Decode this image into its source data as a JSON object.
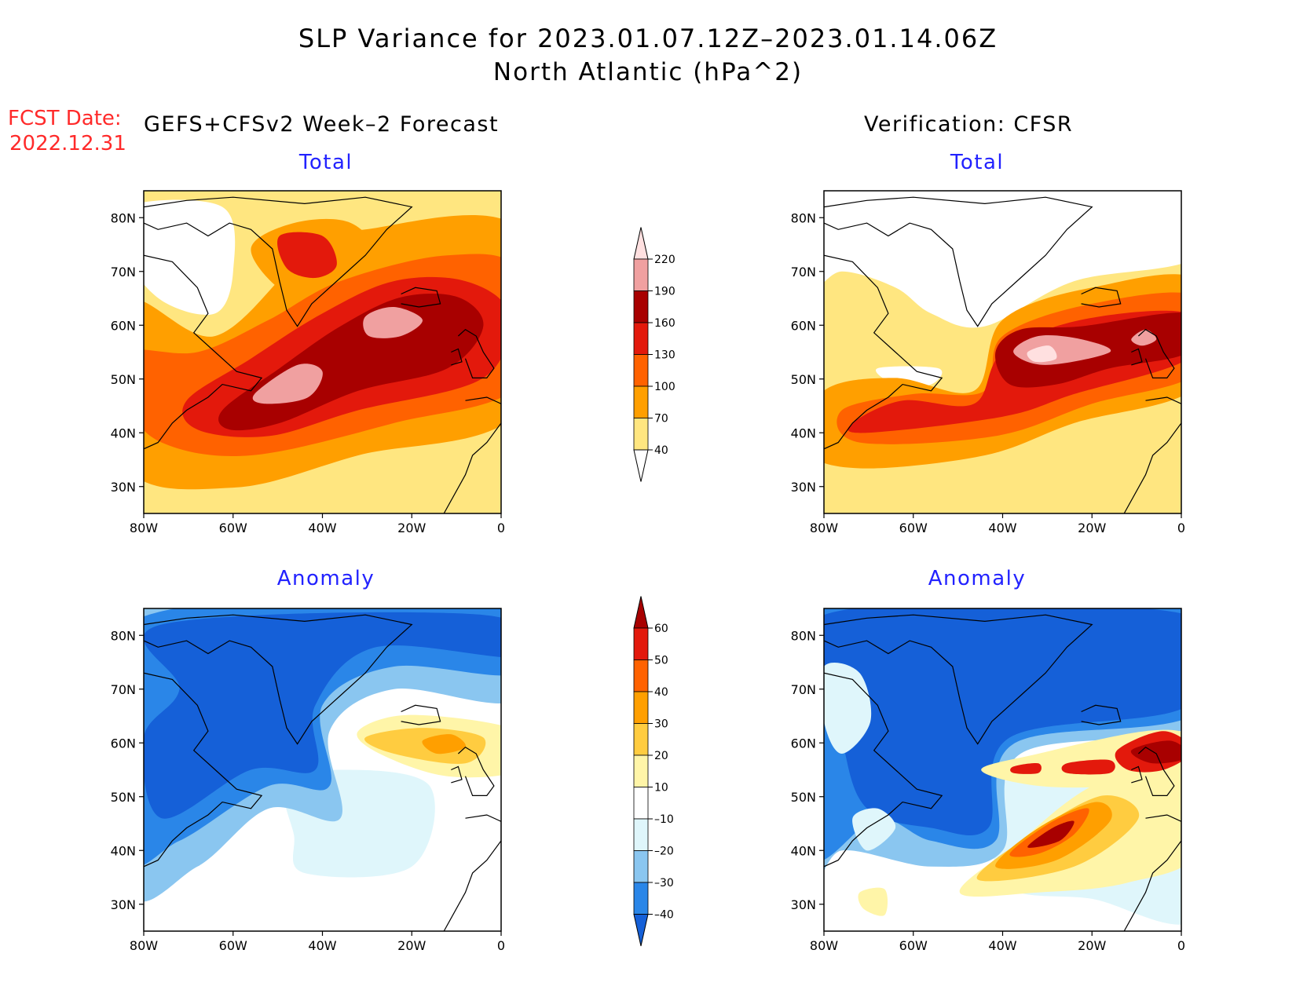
{
  "title_line1": "SLP Variance for 2023.01.07.12Z–2023.01.14.06Z",
  "title_line2": "North Atlantic (hPa^2)",
  "fcst_label": "FCST Date:",
  "fcst_value": "2022.12.31",
  "left_header": "GEFS+CFSv2 Week–2 Forecast",
  "right_header": "Verification: CFSR",
  "chart_data": [
    {
      "type": "heatmap",
      "id": "forecast-total",
      "title": "Total",
      "lon_range": [
        -80,
        0
      ],
      "lat_range": [
        25,
        85
      ],
      "xticks": [
        "80W",
        "60W",
        "40W",
        "20W",
        "0"
      ],
      "yticks": [
        "30N",
        "40N",
        "50N",
        "60N",
        "70N",
        "80N"
      ],
      "contour_levels": [
        40,
        70,
        100,
        130,
        160,
        190,
        220
      ],
      "peak_regions": [
        {
          "lon": -45,
          "lat": 50,
          "approx_value": 200
        },
        {
          "lon": -25,
          "lat": 60,
          "approx_value": 200
        },
        {
          "lon": -40,
          "lat": 73,
          "approx_value": 140
        }
      ]
    },
    {
      "type": "heatmap",
      "id": "verification-total",
      "title": "Total",
      "lon_range": [
        -80,
        0
      ],
      "lat_range": [
        25,
        85
      ],
      "xticks": [
        "80W",
        "60W",
        "40W",
        "20W",
        "0"
      ],
      "yticks": [
        "30N",
        "40N",
        "50N",
        "60N",
        "70N",
        "80N"
      ],
      "contour_levels": [
        40,
        70,
        100,
        130,
        160,
        190,
        220
      ],
      "peak_regions": [
        {
          "lon": -30,
          "lat": 55,
          "approx_value": 220
        },
        {
          "lon": -10,
          "lat": 57,
          "approx_value": 200
        }
      ]
    },
    {
      "type": "heatmap",
      "id": "forecast-anomaly",
      "title": "Anomaly",
      "lon_range": [
        -80,
        0
      ],
      "lat_range": [
        25,
        85
      ],
      "xticks": [
        "80W",
        "60W",
        "40W",
        "20W",
        "0"
      ],
      "yticks": [
        "30N",
        "40N",
        "50N",
        "60N",
        "70N",
        "80N"
      ],
      "contour_levels": [
        -40,
        -30,
        -20,
        -10,
        10,
        20,
        30,
        40,
        50,
        60
      ],
      "peak_regions": [
        {
          "lon": -50,
          "lat": 70,
          "approx_value": -50
        },
        {
          "lon": -12,
          "lat": 61,
          "approx_value": 30
        }
      ]
    },
    {
      "type": "heatmap",
      "id": "verification-anomaly",
      "title": "Anomaly",
      "lon_range": [
        -80,
        0
      ],
      "lat_range": [
        25,
        85
      ],
      "xticks": [
        "80W",
        "60W",
        "40W",
        "20W",
        "0"
      ],
      "yticks": [
        "30N",
        "40N",
        "50N",
        "60N",
        "70N",
        "80N"
      ],
      "contour_levels": [
        -40,
        -30,
        -20,
        -10,
        10,
        20,
        30,
        40,
        50,
        60
      ],
      "peak_regions": [
        {
          "lon": -32,
          "lat": 42,
          "approx_value": 60
        },
        {
          "lon": -8,
          "lat": 57,
          "approx_value": 60
        },
        {
          "lon": -55,
          "lat": 70,
          "approx_value": -50
        }
      ]
    }
  ],
  "colorbar_total": {
    "labels": [
      "40",
      "70",
      "100",
      "130",
      "160",
      "190",
      "220"
    ],
    "colors": [
      "#ffffff",
      "#ffe680",
      "#ff9f00",
      "#ff6200",
      "#e3190c",
      "#a80000",
      "#f0a0a0",
      "#ffe0e0"
    ]
  },
  "colorbar_anomaly": {
    "labels": [
      "–40",
      "–30",
      "–20",
      "–10",
      "10",
      "20",
      "30",
      "40",
      "50",
      "60"
    ],
    "colors": [
      "#1560d8",
      "#2a86e8",
      "#8ac6f0",
      "#dff6fb",
      "#ffffff",
      "#fff5a8",
      "#ffcc40",
      "#ff9f00",
      "#ff6200",
      "#e3190c",
      "#a80000"
    ]
  }
}
